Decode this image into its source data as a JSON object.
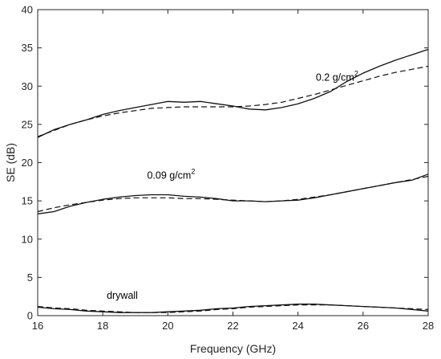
{
  "chart_data": {
    "type": "line",
    "title": "",
    "xlabel": "Frequency (GHz)",
    "ylabel": "SE (dB)",
    "xlim": [
      16,
      28
    ],
    "ylim": [
      0,
      40
    ],
    "xticks": [
      16,
      18,
      20,
      22,
      24,
      26,
      28
    ],
    "yticks": [
      0,
      5,
      10,
      15,
      20,
      25,
      30,
      35,
      40
    ],
    "grid": false,
    "legend": "none",
    "annotations": [
      {
        "base": "0.2 g/cm",
        "sup": "2",
        "x": 25.2,
        "y": 30.7
      },
      {
        "base": "0.09 g/cm",
        "sup": "2",
        "x": 20.1,
        "y": 17.9
      },
      {
        "base": "drywall",
        "sup": "",
        "x": 18.6,
        "y": 2.2
      }
    ],
    "series": [
      {
        "style": "solid",
        "x": [
          16,
          16.5,
          17,
          17.5,
          18,
          18.5,
          19,
          19.5,
          20,
          20.5,
          21,
          21.5,
          22,
          22.5,
          23,
          23.5,
          24,
          24.5,
          25,
          25.5,
          26,
          26.5,
          27,
          27.5,
          28
        ],
        "y": [
          23.3,
          24.3,
          25.0,
          25.6,
          26.3,
          26.8,
          27.2,
          27.6,
          28.0,
          27.9,
          28.0,
          27.7,
          27.4,
          27.0,
          26.9,
          27.2,
          27.7,
          28.4,
          29.3,
          30.6,
          31.7,
          32.6,
          33.4,
          34.1,
          34.8
        ]
      },
      {
        "style": "dashed",
        "x": [
          16,
          16.5,
          17,
          17.5,
          18,
          18.5,
          19,
          19.5,
          20,
          20.5,
          21,
          21.5,
          22,
          22.5,
          23,
          23.5,
          24,
          24.5,
          25,
          25.5,
          26,
          26.5,
          27,
          27.5,
          28
        ],
        "y": [
          23.4,
          24.2,
          25.0,
          25.6,
          26.1,
          26.5,
          26.8,
          27.1,
          27.2,
          27.3,
          27.3,
          27.3,
          27.3,
          27.4,
          27.6,
          27.9,
          28.4,
          28.9,
          29.5,
          30.1,
          30.7,
          31.3,
          31.8,
          32.2,
          32.6
        ]
      },
      {
        "style": "solid",
        "x": [
          16,
          16.5,
          17,
          17.5,
          18,
          18.5,
          19,
          19.5,
          20,
          20.5,
          21,
          21.5,
          22,
          22.5,
          23,
          23.5,
          24,
          24.5,
          25,
          25.5,
          26,
          26.5,
          27,
          27.5,
          28
        ],
        "y": [
          13.3,
          13.6,
          14.3,
          14.8,
          15.2,
          15.5,
          15.7,
          15.8,
          15.8,
          15.6,
          15.5,
          15.3,
          15.0,
          15.0,
          14.9,
          15.0,
          15.1,
          15.4,
          15.8,
          16.2,
          16.6,
          17.0,
          17.4,
          17.7,
          18.5
        ]
      },
      {
        "style": "dashed",
        "x": [
          16,
          16.5,
          17,
          17.5,
          18,
          18.5,
          19,
          19.5,
          20,
          20.5,
          21,
          21.5,
          22,
          22.5,
          23,
          23.5,
          24,
          24.5,
          25,
          25.5,
          26,
          26.5,
          27,
          27.5,
          28
        ],
        "y": [
          13.6,
          14.1,
          14.5,
          14.8,
          15.1,
          15.3,
          15.4,
          15.4,
          15.4,
          15.3,
          15.3,
          15.2,
          15.1,
          15.0,
          14.9,
          15.0,
          15.2,
          15.5,
          15.8,
          16.2,
          16.6,
          17.0,
          17.4,
          17.8,
          18.2
        ]
      },
      {
        "style": "solid",
        "x": [
          16,
          16.5,
          17,
          17.5,
          18,
          18.5,
          19,
          19.5,
          20,
          20.5,
          21,
          21.5,
          22,
          22.5,
          23,
          23.5,
          24,
          24.5,
          25,
          25.5,
          26,
          26.5,
          27,
          27.5,
          28
        ],
        "y": [
          1.1,
          0.9,
          0.8,
          0.6,
          0.5,
          0.4,
          0.4,
          0.4,
          0.5,
          0.6,
          0.7,
          0.9,
          1.0,
          1.2,
          1.3,
          1.4,
          1.5,
          1.5,
          1.4,
          1.3,
          1.2,
          1.1,
          1.0,
          0.8,
          0.6
        ]
      },
      {
        "style": "dashed",
        "x": [
          16,
          16.5,
          17,
          17.5,
          18,
          18.5,
          19,
          19.5,
          20,
          20.5,
          21,
          21.5,
          22,
          22.5,
          23,
          23.5,
          24,
          24.5,
          25,
          25.5,
          26,
          26.5,
          27,
          27.5,
          28
        ],
        "y": [
          1.2,
          1.0,
          0.9,
          0.7,
          0.6,
          0.5,
          0.4,
          0.4,
          0.4,
          0.5,
          0.6,
          0.8,
          0.9,
          1.1,
          1.2,
          1.3,
          1.4,
          1.4,
          1.4,
          1.3,
          1.2,
          1.1,
          1.0,
          0.9,
          0.8
        ]
      }
    ]
  }
}
